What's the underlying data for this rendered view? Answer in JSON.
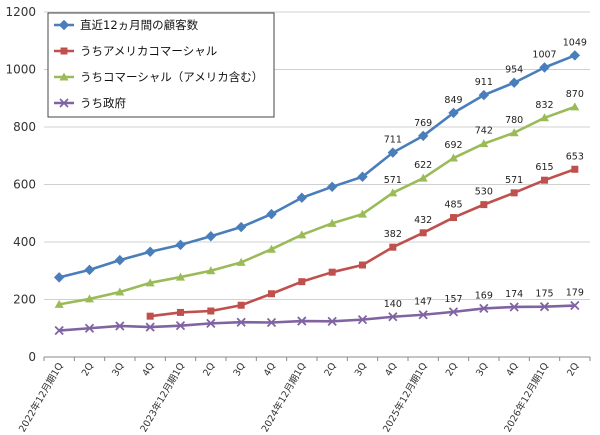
{
  "chart_data": {
    "type": "line",
    "categories": [
      "2022年12月期1Q",
      "2Q",
      "3Q",
      "4Q",
      "2023年12月期1Q",
      "2Q",
      "3Q",
      "4Q",
      "2024年12月期1Q",
      "2Q",
      "3Q",
      "4Q",
      "2025年12月期1Q",
      "2Q",
      "3Q",
      "4Q",
      "2026年12月期1Q",
      "2Q"
    ],
    "ylim": [
      0,
      1200
    ],
    "yticks": [
      0,
      200,
      400,
      600,
      800,
      1000,
      1200
    ],
    "grid": true,
    "legend_position": "top-left",
    "series": [
      {
        "name": "直近12ヵ月間の顧客数",
        "color": "#4a7ebb",
        "marker": "diamond",
        "values": [
          277,
          303,
          337,
          366,
          390,
          420,
          452,
          497,
          554,
          592,
          627,
          711,
          769,
          849,
          911,
          954,
          1007,
          1049
        ],
        "labels": [
          "",
          "",
          "",
          "",
          "",
          "",
          "",
          "",
          "",
          "",
          "",
          "711",
          "769",
          "849",
          "911",
          "954",
          "1007",
          "1049"
        ]
      },
      {
        "name": "うちアメリカコマーシャル",
        "color": "#c0504d",
        "marker": "square",
        "values": [
          null,
          null,
          null,
          142,
          155,
          160,
          180,
          220,
          262,
          295,
          320,
          382,
          432,
          485,
          530,
          571,
          615,
          653
        ],
        "labels": [
          "",
          "",
          "",
          "",
          "",
          "",
          "",
          "",
          "",
          "",
          "",
          "382",
          "432",
          "485",
          "530",
          "571",
          "615",
          "653"
        ]
      },
      {
        "name": "うちコマーシャル（アメリカ含む）",
        "color": "#9bbb59",
        "marker": "triangle",
        "values": [
          183,
          202,
          226,
          258,
          278,
          300,
          329,
          375,
          425,
          465,
          497,
          571,
          622,
          692,
          742,
          780,
          832,
          870
        ],
        "labels": [
          "",
          "",
          "",
          "",
          "",
          "",
          "",
          "",
          "",
          "",
          "",
          "571",
          "622",
          "692",
          "742",
          "780",
          "832",
          "870"
        ]
      },
      {
        "name": "うち政府",
        "color": "#8064a2",
        "marker": "x",
        "values": [
          92,
          100,
          108,
          104,
          109,
          117,
          121,
          120,
          125,
          124,
          130,
          140,
          147,
          157,
          169,
          174,
          175,
          179
        ],
        "labels": [
          "",
          "",
          "",
          "",
          "",
          "",
          "",
          "",
          "",
          "",
          "",
          "140",
          "147",
          "157",
          "169",
          "174",
          "175",
          "179"
        ]
      }
    ]
  }
}
